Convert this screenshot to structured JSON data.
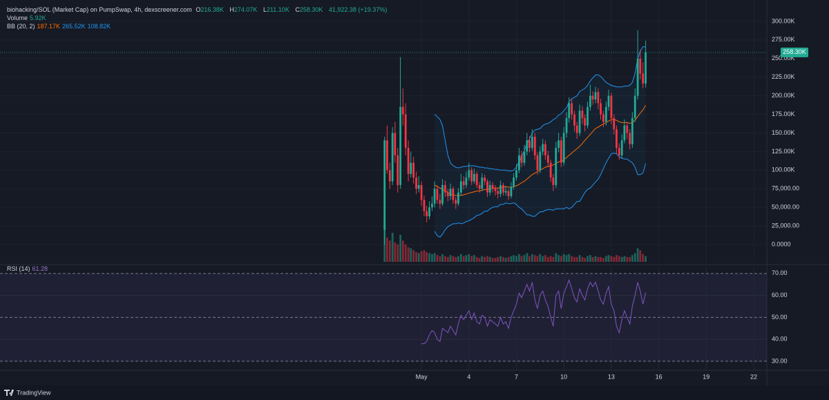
{
  "chart_data": {
    "type": "candlestick",
    "title": "biohacking/SOL (Market Cap) on PumpSwap, 4h, dexscreener.com",
    "ohlc_readout": [
      {
        "key": "O",
        "value": "216.38K"
      },
      {
        "key": "H",
        "value": "274.07K"
      },
      {
        "key": "L",
        "value": "211.10K"
      },
      {
        "key": "C",
        "value": "258.30K"
      }
    ],
    "change_readout": "41,922.38 (+19.37%)",
    "volume_label": "Volume",
    "volume_readout": "5.92K",
    "bb_label": "BB (20, 2)",
    "bb_readouts": [
      "187.17K",
      "265.52K",
      "108.82K"
    ],
    "rsi_label": "RSI (14)",
    "rsi_readout": "61.28",
    "last_price_label": "258.30K",
    "brand": "TradingView",
    "up_color": "#22ab94",
    "down_color": "#f23645",
    "bb_band_color": "#2196f3",
    "bb_middle_color": "#ff6d00",
    "rsi_color": "#7e57c2",
    "x": [
      -1.33,
      -1.17,
      -1,
      -0.83,
      -0.67,
      -0.5,
      -0.33,
      -0.17,
      0,
      0.17,
      0.33,
      0.5,
      0.67,
      0.83,
      1,
      1.17,
      1.33,
      1.5,
      1.67,
      1.83,
      2,
      2.17,
      2.33,
      2.5,
      2.67,
      2.83,
      3,
      3.17,
      3.33,
      3.5,
      3.67,
      3.83,
      4,
      4.17,
      4.33,
      4.5,
      4.67,
      4.83,
      5,
      5.17,
      5.33,
      5.5,
      5.67,
      5.83,
      6,
      6.17,
      6.33,
      6.5,
      6.67,
      6.83,
      7,
      7.17,
      7.33,
      7.5,
      7.67,
      7.83,
      8,
      8.17,
      8.33,
      8.5,
      8.67,
      8.83,
      9,
      9.17,
      9.33,
      9.5,
      9.67,
      9.83,
      10,
      10.17,
      10.33,
      10.5,
      10.67,
      10.83,
      11,
      11.17,
      11.33,
      11.5,
      11.67,
      11.83,
      12,
      12.17,
      12.33,
      12.5,
      12.67,
      12.83,
      13,
      13.17,
      13.33,
      13.5,
      13.67,
      13.83,
      14,
      14.17,
      14.33,
      14.5,
      14.67,
      14.83,
      15,
      15.17
    ],
    "ohlc": [
      [
        20000,
        145000,
        0,
        140000
      ],
      [
        140000,
        160000,
        95000,
        100000
      ],
      [
        100000,
        110000,
        75000,
        85000
      ],
      [
        85000,
        158000,
        80000,
        150000
      ],
      [
        150000,
        165000,
        110000,
        120000
      ],
      [
        120000,
        130000,
        70000,
        80000
      ],
      [
        80000,
        252000,
        75000,
        185000
      ],
      [
        185000,
        210000,
        160000,
        175000
      ],
      [
        175000,
        190000,
        120000,
        130000
      ],
      [
        130000,
        140000,
        85000,
        95000
      ],
      [
        95000,
        125000,
        90000,
        110000
      ],
      [
        110000,
        118000,
        82000,
        90000
      ],
      [
        90000,
        98000,
        68000,
        75000
      ],
      [
        75000,
        92000,
        70000,
        80000
      ],
      [
        80000,
        85000,
        52000,
        60000
      ],
      [
        60000,
        66000,
        38000,
        45000
      ],
      [
        45000,
        52000,
        30000,
        38000
      ],
      [
        38000,
        58000,
        34000,
        50000
      ],
      [
        50000,
        65000,
        45000,
        55000
      ],
      [
        55000,
        85000,
        50000,
        75000
      ],
      [
        75000,
        80000,
        55000,
        60000
      ],
      [
        60000,
        68000,
        48000,
        55000
      ],
      [
        55000,
        88000,
        52000,
        80000
      ],
      [
        80000,
        86000,
        64000,
        70000
      ],
      [
        70000,
        75000,
        58000,
        65000
      ],
      [
        65000,
        82000,
        60000,
        75000
      ],
      [
        75000,
        78000,
        55000,
        60000
      ],
      [
        60000,
        64000,
        48000,
        55000
      ],
      [
        55000,
        76000,
        52000,
        70000
      ],
      [
        70000,
        95000,
        66000,
        85000
      ],
      [
        85000,
        92000,
        74000,
        80000
      ],
      [
        80000,
        98000,
        76000,
        90000
      ],
      [
        90000,
        110000,
        86000,
        100000
      ],
      [
        100000,
        104000,
        80000,
        85000
      ],
      [
        85000,
        102000,
        82000,
        95000
      ],
      [
        95000,
        98000,
        76000,
        80000
      ],
      [
        80000,
        84000,
        70000,
        75000
      ],
      [
        75000,
        96000,
        72000,
        90000
      ],
      [
        90000,
        94000,
        80000,
        85000
      ],
      [
        85000,
        88000,
        64000,
        70000
      ],
      [
        70000,
        86000,
        66000,
        80000
      ],
      [
        80000,
        84000,
        70000,
        75000
      ],
      [
        75000,
        80000,
        66000,
        72000
      ],
      [
        72000,
        76000,
        62000,
        68000
      ],
      [
        68000,
        86000,
        64000,
        80000
      ],
      [
        80000,
        83000,
        66000,
        70000
      ],
      [
        70000,
        78000,
        66000,
        72000
      ],
      [
        72000,
        75000,
        60000,
        65000
      ],
      [
        65000,
        84000,
        62000,
        78000
      ],
      [
        78000,
        96000,
        74000,
        90000
      ],
      [
        90000,
        108000,
        86000,
        100000
      ],
      [
        100000,
        130000,
        96000,
        120000
      ],
      [
        120000,
        126000,
        104000,
        110000
      ],
      [
        110000,
        134000,
        106000,
        125000
      ],
      [
        125000,
        150000,
        120000,
        140000
      ],
      [
        140000,
        146000,
        124000,
        130000
      ],
      [
        130000,
        155000,
        126000,
        145000
      ],
      [
        145000,
        150000,
        114000,
        120000
      ],
      [
        120000,
        124000,
        94000,
        100000
      ],
      [
        100000,
        132000,
        96000,
        125000
      ],
      [
        125000,
        142000,
        120000,
        135000
      ],
      [
        135000,
        140000,
        114000,
        120000
      ],
      [
        120000,
        126000,
        104000,
        110000
      ],
      [
        110000,
        114000,
        84000,
        90000
      ],
      [
        90000,
        95000,
        72000,
        80000
      ],
      [
        80000,
        138000,
        76000,
        130000
      ],
      [
        130000,
        150000,
        124000,
        140000
      ],
      [
        140000,
        145000,
        104000,
        110000
      ],
      [
        110000,
        158000,
        106000,
        150000
      ],
      [
        150000,
        178000,
        144000,
        170000
      ],
      [
        170000,
        198000,
        164000,
        190000
      ],
      [
        190000,
        196000,
        168000,
        175000
      ],
      [
        175000,
        180000,
        152000,
        160000
      ],
      [
        160000,
        165000,
        142000,
        150000
      ],
      [
        150000,
        188000,
        146000,
        180000
      ],
      [
        180000,
        186000,
        162000,
        170000
      ],
      [
        170000,
        175000,
        152000,
        160000
      ],
      [
        160000,
        192000,
        156000,
        185000
      ],
      [
        185000,
        215000,
        180000,
        200000
      ],
      [
        200000,
        206000,
        188000,
        195000
      ],
      [
        195000,
        212000,
        190000,
        205000
      ],
      [
        205000,
        210000,
        182000,
        190000
      ],
      [
        190000,
        196000,
        168000,
        175000
      ],
      [
        175000,
        180000,
        158000,
        165000
      ],
      [
        165000,
        192000,
        160000,
        185000
      ],
      [
        185000,
        208000,
        180000,
        200000
      ],
      [
        200000,
        204000,
        162000,
        170000
      ],
      [
        170000,
        175000,
        148000,
        155000
      ],
      [
        155000,
        160000,
        122000,
        130000
      ],
      [
        130000,
        136000,
        114000,
        120000
      ],
      [
        120000,
        148000,
        116000,
        140000
      ],
      [
        140000,
        168000,
        136000,
        160000
      ],
      [
        160000,
        165000,
        142000,
        150000
      ],
      [
        150000,
        155000,
        128000,
        135000
      ],
      [
        135000,
        178000,
        130000,
        170000
      ],
      [
        170000,
        210000,
        165000,
        200000
      ],
      [
        200000,
        288000,
        195000,
        250000
      ],
      [
        250000,
        262000,
        222000,
        230000
      ],
      [
        230000,
        245000,
        210000,
        216380
      ],
      [
        216380,
        274070,
        211100,
        258300
      ]
    ],
    "volume": [
      40000,
      25000,
      22000,
      30000,
      20000,
      18000,
      28000,
      22000,
      18000,
      15000,
      14000,
      12000,
      10000,
      9000,
      11000,
      12000,
      10000,
      9000,
      8000,
      9000,
      7000,
      6000,
      8000,
      6000,
      5000,
      7000,
      6000,
      5000,
      6000,
      8000,
      6000,
      7000,
      8000,
      6000,
      7000,
      5000,
      4000,
      6000,
      5000,
      6000,
      5000,
      4000,
      4000,
      5000,
      6000,
      5000,
      4000,
      5000,
      6000,
      7000,
      6000,
      8000,
      6000,
      7000,
      9000,
      6000,
      8000,
      7000,
      6000,
      8000,
      6000,
      7000,
      5000,
      6000,
      5000,
      9000,
      7000,
      6000,
      8000,
      7000,
      8000,
      6000,
      5000,
      5000,
      7000,
      5000,
      4000,
      6000,
      7000,
      5000,
      6000,
      5000,
      5000,
      4000,
      6000,
      7000,
      6000,
      5000,
      7000,
      6000,
      5000,
      6000,
      5000,
      5000,
      7000,
      9000,
      14000,
      12000,
      8000,
      5920
    ],
    "bb_upper": [
      null,
      null,
      null,
      null,
      null,
      null,
      null,
      null,
      null,
      null,
      null,
      null,
      null,
      null,
      null,
      null,
      null,
      null,
      null,
      175000,
      172000,
      168000,
      160000,
      140000,
      120000,
      110000,
      106000,
      104000,
      103000,
      104000,
      105000,
      105000,
      106000,
      106000,
      106000,
      105000,
      104000,
      104000,
      103000,
      103000,
      102000,
      102000,
      101000,
      101000,
      100000,
      100000,
      100000,
      99000,
      99000,
      100000,
      104000,
      112000,
      118000,
      126000,
      136000,
      142000,
      150000,
      154000,
      155000,
      156000,
      160000,
      162000,
      163000,
      165000,
      168000,
      170000,
      174000,
      176000,
      180000,
      184000,
      192000,
      196000,
      198000,
      200000,
      206000,
      208000,
      210000,
      214000,
      220000,
      224000,
      228000,
      228000,
      226000,
      222000,
      218000,
      216000,
      214000,
      213000,
      212000,
      212000,
      212000,
      213000,
      213000,
      214000,
      218000,
      230000,
      250000,
      260000,
      266000,
      265520
    ],
    "bb_middle": [
      null,
      null,
      null,
      null,
      null,
      null,
      null,
      null,
      null,
      null,
      null,
      null,
      null,
      null,
      null,
      null,
      null,
      null,
      null,
      80000,
      78000,
      76000,
      74000,
      72000,
      70000,
      68000,
      67000,
      66000,
      66000,
      66000,
      67000,
      68000,
      69000,
      70000,
      71000,
      72000,
      72000,
      73000,
      74000,
      74000,
      75000,
      76000,
      76000,
      76000,
      77000,
      77000,
      78000,
      77000,
      77000,
      78000,
      79000,
      81000,
      83000,
      85000,
      88000,
      91000,
      94000,
      96000,
      98000,
      100000,
      102000,
      104000,
      105000,
      106000,
      107000,
      109000,
      111000,
      112000,
      114000,
      117000,
      120000,
      123000,
      126000,
      129000,
      132000,
      136000,
      140000,
      144000,
      148000,
      152000,
      156000,
      158000,
      160000,
      162000,
      164000,
      166000,
      168000,
      168000,
      167000,
      165000,
      164000,
      164000,
      164000,
      163000,
      164000,
      167000,
      172000,
      177000,
      181000,
      187170
    ],
    "bb_lower": [
      null,
      null,
      null,
      null,
      null,
      null,
      null,
      null,
      null,
      null,
      null,
      null,
      null,
      null,
      null,
      null,
      null,
      null,
      null,
      18000,
      12000,
      10000,
      14000,
      20000,
      24000,
      26000,
      28000,
      28000,
      29000,
      28000,
      29000,
      31000,
      32000,
      34000,
      36000,
      39000,
      40000,
      42000,
      45000,
      45000,
      48000,
      50000,
      51000,
      51000,
      54000,
      54000,
      56000,
      55000,
      55000,
      56000,
      54000,
      50000,
      48000,
      44000,
      40000,
      40000,
      38000,
      38000,
      41000,
      44000,
      44000,
      46000,
      47000,
      47000,
      46000,
      48000,
      48000,
      48000,
      48000,
      50000,
      48000,
      50000,
      54000,
      58000,
      58000,
      64000,
      70000,
      74000,
      76000,
      80000,
      84000,
      88000,
      94000,
      102000,
      110000,
      116000,
      122000,
      123000,
      122000,
      118000,
      116000,
      115000,
      115000,
      112000,
      110000,
      104000,
      94000,
      94000,
      96000,
      108820
    ],
    "rsi": [
      null,
      null,
      null,
      null,
      null,
      null,
      null,
      null,
      null,
      null,
      null,
      null,
      null,
      null,
      38,
      38,
      39,
      42,
      44,
      43,
      40,
      39,
      45,
      44,
      43,
      46,
      44,
      42,
      47,
      51,
      49,
      51,
      53,
      49,
      52,
      48,
      47,
      51,
      50,
      46,
      49,
      48,
      47,
      46,
      50,
      47,
      48,
      45,
      50,
      53,
      56,
      61,
      59,
      62,
      65,
      62,
      66,
      58,
      54,
      60,
      62,
      58,
      55,
      50,
      46,
      60,
      62,
      54,
      61,
      64,
      67,
      63,
      59,
      57,
      63,
      60,
      58,
      63,
      66,
      64,
      66,
      62,
      58,
      56,
      61,
      64,
      56,
      53,
      46,
      43,
      49,
      53,
      50,
      47,
      55,
      60,
      66,
      62,
      56,
      61.28
    ],
    "xlim": [
      -25.64,
      22.83
    ],
    "xticks": [
      {
        "value": 1,
        "label": "May"
      },
      4,
      7,
      10,
      13,
      16,
      19,
      22
    ],
    "ylim": [
      -24100,
      328700
    ],
    "yticks": [
      {
        "value": 0,
        "label": "0.0000"
      },
      {
        "value": 25000,
        "label": "25,000.00"
      },
      {
        "value": 50000,
        "label": "50,000.00"
      },
      {
        "value": 75000,
        "label": "75,000.00"
      },
      {
        "value": 100000,
        "label": "100.00K"
      },
      {
        "value": 125000,
        "label": "125.00K"
      },
      {
        "value": 150000,
        "label": "150.00K"
      },
      {
        "value": 175000,
        "label": "175.00K"
      },
      {
        "value": 200000,
        "label": "200.00K"
      },
      {
        "value": 225000,
        "label": "225.00K"
      },
      {
        "value": 250000,
        "label": "250.00K"
      },
      {
        "value": 275000,
        "label": "275.00K"
      },
      {
        "value": 300000,
        "label": "300.00K"
      }
    ],
    "rsi_ylim": [
      26.2,
      73.1
    ],
    "rsi_yticks": [
      {
        "value": 30,
        "label": "30.00"
      },
      {
        "value": 40,
        "label": "40.00"
      },
      {
        "value": 50,
        "label": "50.00"
      },
      {
        "value": 60,
        "label": "60.00"
      },
      {
        "value": 70,
        "label": "70.00"
      }
    ],
    "grid": true
  }
}
